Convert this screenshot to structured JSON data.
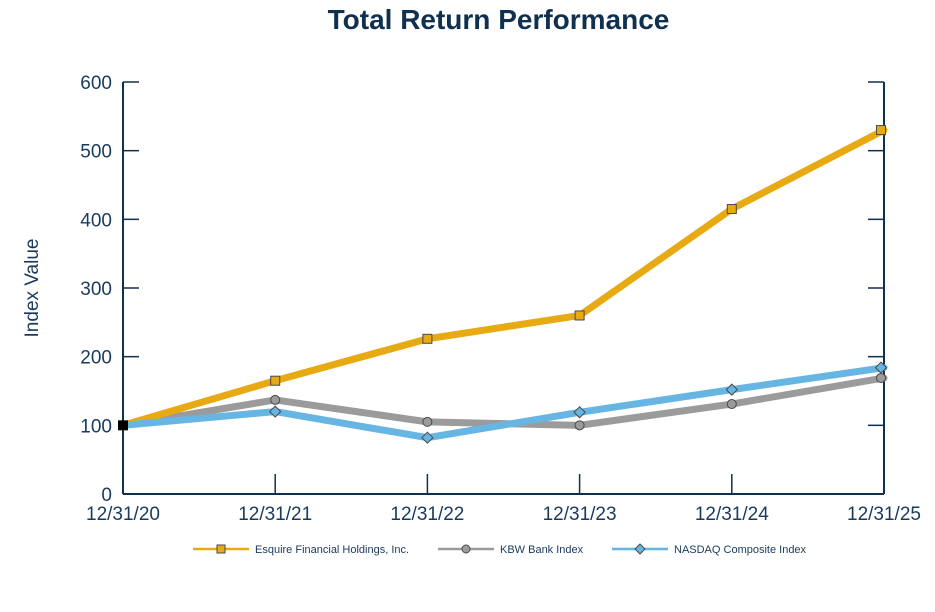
{
  "chart_data": {
    "type": "line",
    "title": "Total Return Performance",
    "ylabel": "Index Value",
    "xlabel": "",
    "categories": [
      "12/31/20",
      "12/31/21",
      "12/31/22",
      "12/31/23",
      "12/31/24",
      "12/31/25"
    ],
    "ylim": [
      0,
      600
    ],
    "yticks": [
      0,
      100,
      200,
      300,
      400,
      500,
      600
    ],
    "grid": false,
    "legend_position": "bottom",
    "series": [
      {
        "name": "Esquire Financial Holdings, Inc.",
        "values": [
          100,
          165,
          226,
          260,
          415,
          530
        ],
        "color": "#e8aa12",
        "marker": "square"
      },
      {
        "name": "KBW Bank Index",
        "values": [
          100,
          137,
          105,
          100,
          131,
          169
        ],
        "color": "#9b9b9b",
        "marker": "circle"
      },
      {
        "name": "NASDAQ Composite Index",
        "values": [
          100,
          120,
          82,
          119,
          152,
          184
        ],
        "color": "#66b5e2",
        "marker": "diamond"
      }
    ]
  }
}
